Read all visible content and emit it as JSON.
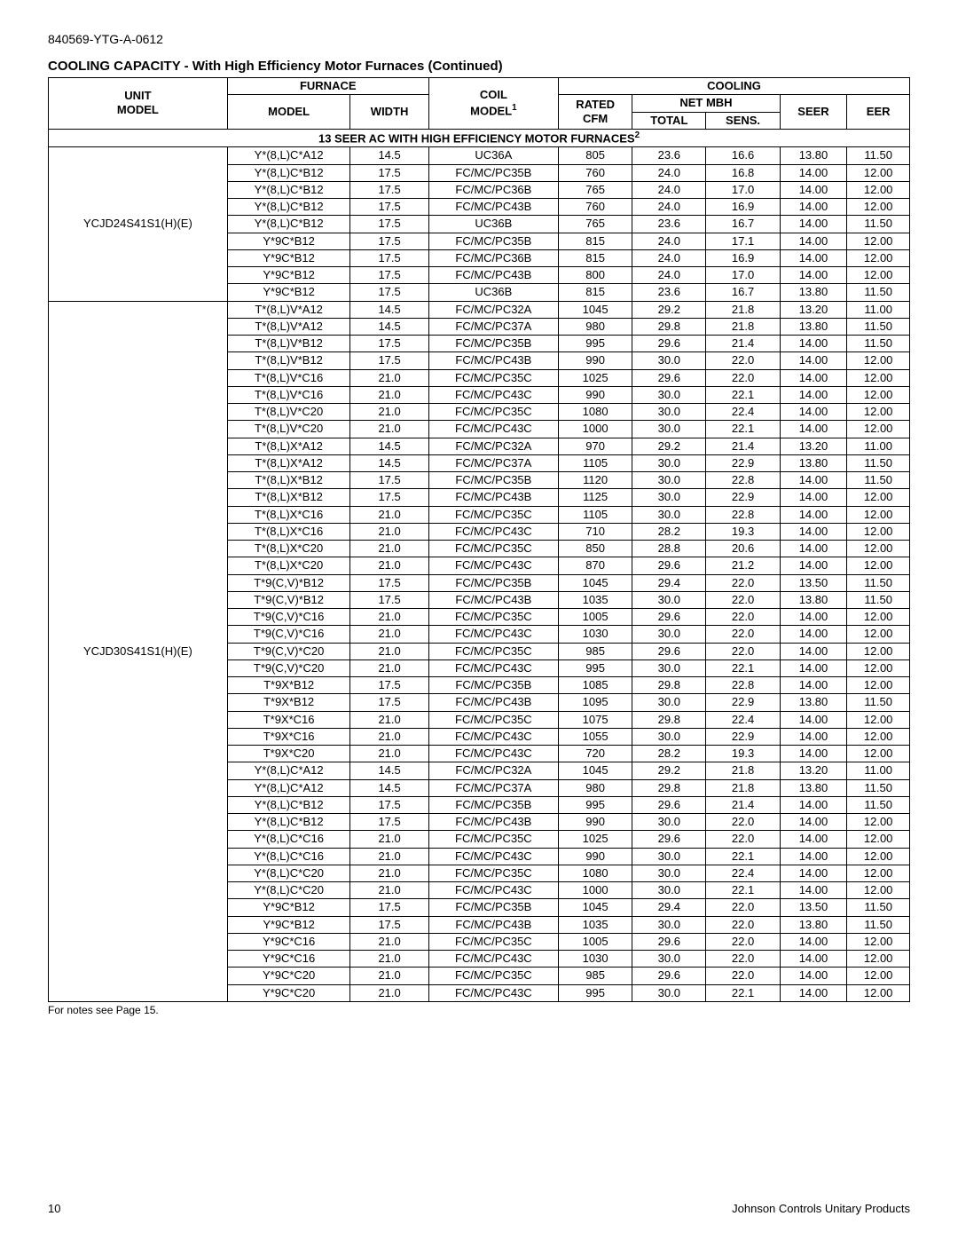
{
  "doc_id": "840569-YTG-A-0612",
  "section_title": "COOLING CAPACITY - With High Efficiency Motor Furnaces (Continued)",
  "subhead_prefix": "13 SEER AC WITH HIGH EFFICIENCY MOTOR FURNACES",
  "subhead_sup": "2",
  "footnote": "For notes see Page 15.",
  "page_number": "10",
  "footer_right": "Johnson Controls Unitary Products",
  "headers": {
    "unit_model_l1": "UNIT",
    "unit_model_l2": "MODEL",
    "furnace": "FURNACE",
    "furnace_model": "MODEL",
    "furnace_width": "WIDTH",
    "coil_model_l1": "COIL",
    "coil_model_l2": "MODEL",
    "coil_model_sup": "1",
    "cooling": "COOLING",
    "rated_cfm_l1": "RATED",
    "rated_cfm_l2": "CFM",
    "net_mbh": "NET MBH",
    "total": "TOTAL",
    "sens": "SENS.",
    "seer": "SEER",
    "eer": "EER"
  },
  "col_widths": [
    "160",
    "110",
    "70",
    "116",
    "66",
    "66",
    "66",
    "60",
    "56"
  ],
  "groups": [
    {
      "unit_model": "YCJD24S41S1(H)(E)",
      "rows": [
        [
          "Y*(8,L)C*A12",
          "14.5",
          "UC36A",
          "805",
          "23.6",
          "16.6",
          "13.80",
          "11.50"
        ],
        [
          "Y*(8,L)C*B12",
          "17.5",
          "FC/MC/PC35B",
          "760",
          "24.0",
          "16.8",
          "14.00",
          "12.00"
        ],
        [
          "Y*(8,L)C*B12",
          "17.5",
          "FC/MC/PC36B",
          "765",
          "24.0",
          "17.0",
          "14.00",
          "12.00"
        ],
        [
          "Y*(8,L)C*B12",
          "17.5",
          "FC/MC/PC43B",
          "760",
          "24.0",
          "16.9",
          "14.00",
          "12.00"
        ],
        [
          "Y*(8,L)C*B12",
          "17.5",
          "UC36B",
          "765",
          "23.6",
          "16.7",
          "14.00",
          "11.50"
        ],
        [
          "Y*9C*B12",
          "17.5",
          "FC/MC/PC35B",
          "815",
          "24.0",
          "17.1",
          "14.00",
          "12.00"
        ],
        [
          "Y*9C*B12",
          "17.5",
          "FC/MC/PC36B",
          "815",
          "24.0",
          "16.9",
          "14.00",
          "12.00"
        ],
        [
          "Y*9C*B12",
          "17.5",
          "FC/MC/PC43B",
          "800",
          "24.0",
          "17.0",
          "14.00",
          "12.00"
        ],
        [
          "Y*9C*B12",
          "17.5",
          "UC36B",
          "815",
          "23.6",
          "16.7",
          "13.80",
          "11.50"
        ]
      ]
    },
    {
      "unit_model": "YCJD30S41S1(H)(E)",
      "rows": [
        [
          "T*(8,L)V*A12",
          "14.5",
          "FC/MC/PC32A",
          "1045",
          "29.2",
          "21.8",
          "13.20",
          "11.00"
        ],
        [
          "T*(8,L)V*A12",
          "14.5",
          "FC/MC/PC37A",
          "980",
          "29.8",
          "21.8",
          "13.80",
          "11.50"
        ],
        [
          "T*(8,L)V*B12",
          "17.5",
          "FC/MC/PC35B",
          "995",
          "29.6",
          "21.4",
          "14.00",
          "11.50"
        ],
        [
          "T*(8,L)V*B12",
          "17.5",
          "FC/MC/PC43B",
          "990",
          "30.0",
          "22.0",
          "14.00",
          "12.00"
        ],
        [
          "T*(8,L)V*C16",
          "21.0",
          "FC/MC/PC35C",
          "1025",
          "29.6",
          "22.0",
          "14.00",
          "12.00"
        ],
        [
          "T*(8,L)V*C16",
          "21.0",
          "FC/MC/PC43C",
          "990",
          "30.0",
          "22.1",
          "14.00",
          "12.00"
        ],
        [
          "T*(8,L)V*C20",
          "21.0",
          "FC/MC/PC35C",
          "1080",
          "30.0",
          "22.4",
          "14.00",
          "12.00"
        ],
        [
          "T*(8,L)V*C20",
          "21.0",
          "FC/MC/PC43C",
          "1000",
          "30.0",
          "22.1",
          "14.00",
          "12.00"
        ],
        [
          "T*(8,L)X*A12",
          "14.5",
          "FC/MC/PC32A",
          "970",
          "29.2",
          "21.4",
          "13.20",
          "11.00"
        ],
        [
          "T*(8,L)X*A12",
          "14.5",
          "FC/MC/PC37A",
          "1105",
          "30.0",
          "22.9",
          "13.80",
          "11.50"
        ],
        [
          "T*(8,L)X*B12",
          "17.5",
          "FC/MC/PC35B",
          "1120",
          "30.0",
          "22.8",
          "14.00",
          "11.50"
        ],
        [
          "T*(8,L)X*B12",
          "17.5",
          "FC/MC/PC43B",
          "1125",
          "30.0",
          "22.9",
          "14.00",
          "12.00"
        ],
        [
          "T*(8,L)X*C16",
          "21.0",
          "FC/MC/PC35C",
          "1105",
          "30.0",
          "22.8",
          "14.00",
          "12.00"
        ],
        [
          "T*(8,L)X*C16",
          "21.0",
          "FC/MC/PC43C",
          "710",
          "28.2",
          "19.3",
          "14.00",
          "12.00"
        ],
        [
          "T*(8,L)X*C20",
          "21.0",
          "FC/MC/PC35C",
          "850",
          "28.8",
          "20.6",
          "14.00",
          "12.00"
        ],
        [
          "T*(8,L)X*C20",
          "21.0",
          "FC/MC/PC43C",
          "870",
          "29.6",
          "21.2",
          "14.00",
          "12.00"
        ],
        [
          "T*9(C,V)*B12",
          "17.5",
          "FC/MC/PC35B",
          "1045",
          "29.4",
          "22.0",
          "13.50",
          "11.50"
        ],
        [
          "T*9(C,V)*B12",
          "17.5",
          "FC/MC/PC43B",
          "1035",
          "30.0",
          "22.0",
          "13.80",
          "11.50"
        ],
        [
          "T*9(C,V)*C16",
          "21.0",
          "FC/MC/PC35C",
          "1005",
          "29.6",
          "22.0",
          "14.00",
          "12.00"
        ],
        [
          "T*9(C,V)*C16",
          "21.0",
          "FC/MC/PC43C",
          "1030",
          "30.0",
          "22.0",
          "14.00",
          "12.00"
        ],
        [
          "T*9(C,V)*C20",
          "21.0",
          "FC/MC/PC35C",
          "985",
          "29.6",
          "22.0",
          "14.00",
          "12.00"
        ],
        [
          "T*9(C,V)*C20",
          "21.0",
          "FC/MC/PC43C",
          "995",
          "30.0",
          "22.1",
          "14.00",
          "12.00"
        ],
        [
          "T*9X*B12",
          "17.5",
          "FC/MC/PC35B",
          "1085",
          "29.8",
          "22.8",
          "14.00",
          "12.00"
        ],
        [
          "T*9X*B12",
          "17.5",
          "FC/MC/PC43B",
          "1095",
          "30.0",
          "22.9",
          "13.80",
          "11.50"
        ],
        [
          "T*9X*C16",
          "21.0",
          "FC/MC/PC35C",
          "1075",
          "29.8",
          "22.4",
          "14.00",
          "12.00"
        ],
        [
          "T*9X*C16",
          "21.0",
          "FC/MC/PC43C",
          "1055",
          "30.0",
          "22.9",
          "14.00",
          "12.00"
        ],
        [
          "T*9X*C20",
          "21.0",
          "FC/MC/PC43C",
          "720",
          "28.2",
          "19.3",
          "14.00",
          "12.00"
        ],
        [
          "Y*(8,L)C*A12",
          "14.5",
          "FC/MC/PC32A",
          "1045",
          "29.2",
          "21.8",
          "13.20",
          "11.00"
        ],
        [
          "Y*(8,L)C*A12",
          "14.5",
          "FC/MC/PC37A",
          "980",
          "29.8",
          "21.8",
          "13.80",
          "11.50"
        ],
        [
          "Y*(8,L)C*B12",
          "17.5",
          "FC/MC/PC35B",
          "995",
          "29.6",
          "21.4",
          "14.00",
          "11.50"
        ],
        [
          "Y*(8,L)C*B12",
          "17.5",
          "FC/MC/PC43B",
          "990",
          "30.0",
          "22.0",
          "14.00",
          "12.00"
        ],
        [
          "Y*(8,L)C*C16",
          "21.0",
          "FC/MC/PC35C",
          "1025",
          "29.6",
          "22.0",
          "14.00",
          "12.00"
        ],
        [
          "Y*(8,L)C*C16",
          "21.0",
          "FC/MC/PC43C",
          "990",
          "30.0",
          "22.1",
          "14.00",
          "12.00"
        ],
        [
          "Y*(8,L)C*C20",
          "21.0",
          "FC/MC/PC35C",
          "1080",
          "30.0",
          "22.4",
          "14.00",
          "12.00"
        ],
        [
          "Y*(8,L)C*C20",
          "21.0",
          "FC/MC/PC43C",
          "1000",
          "30.0",
          "22.1",
          "14.00",
          "12.00"
        ],
        [
          "Y*9C*B12",
          "17.5",
          "FC/MC/PC35B",
          "1045",
          "29.4",
          "22.0",
          "13.50",
          "11.50"
        ],
        [
          "Y*9C*B12",
          "17.5",
          "FC/MC/PC43B",
          "1035",
          "30.0",
          "22.0",
          "13.80",
          "11.50"
        ],
        [
          "Y*9C*C16",
          "21.0",
          "FC/MC/PC35C",
          "1005",
          "29.6",
          "22.0",
          "14.00",
          "12.00"
        ],
        [
          "Y*9C*C16",
          "21.0",
          "FC/MC/PC43C",
          "1030",
          "30.0",
          "22.0",
          "14.00",
          "12.00"
        ],
        [
          "Y*9C*C20",
          "21.0",
          "FC/MC/PC35C",
          "985",
          "29.6",
          "22.0",
          "14.00",
          "12.00"
        ],
        [
          "Y*9C*C20",
          "21.0",
          "FC/MC/PC43C",
          "995",
          "30.0",
          "22.1",
          "14.00",
          "12.00"
        ]
      ]
    }
  ]
}
